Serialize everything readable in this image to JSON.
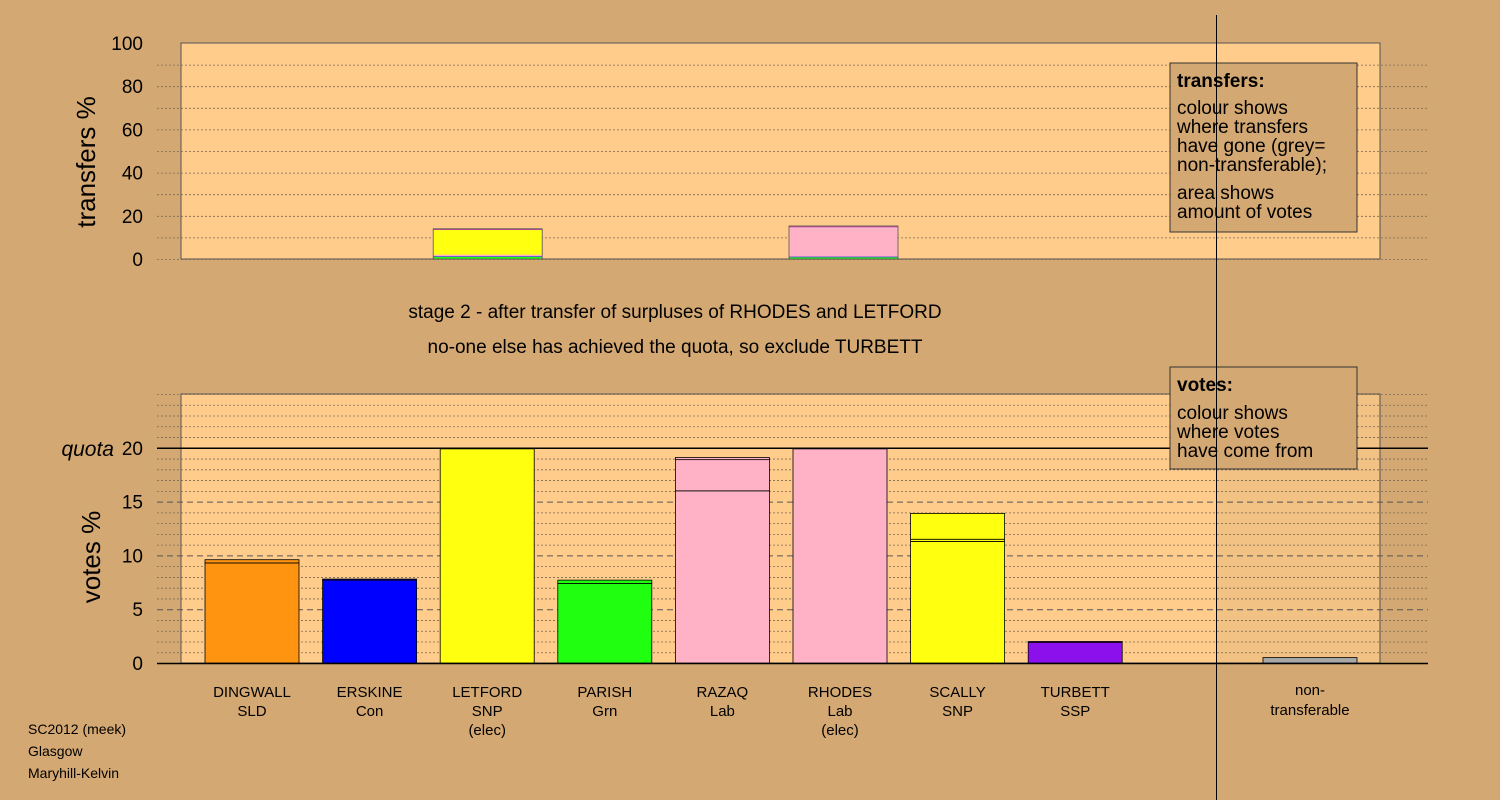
{
  "stage_text": {
    "line1": "stage 2 - after transfer of surpluses of RHODES and LETFORD",
    "line2": "no-one else has achieved the quota, so exclude TURBETT"
  },
  "legend_transfers": {
    "title": "transfers:",
    "lines": [
      "colour shows",
      "where transfers",
      "have gone (grey=",
      "non-transferable);",
      "area shows",
      "amount of votes"
    ]
  },
  "legend_votes": {
    "title": "votes:",
    "lines": [
      "colour shows",
      "where votes",
      "have come from"
    ]
  },
  "footer": [
    "SC2012 (meek)",
    "Glasgow",
    "Maryhill-Kelvin"
  ],
  "colors": {
    "background": "#d4a872",
    "panel": "#ffcc8c",
    "SLD": "#ff9410",
    "Con": "#0000ff",
    "SNP": "#ffff10",
    "Grn": "#21ff10",
    "Lab": "#ffb2c6",
    "SSP": "#8c10ec",
    "nontransferable": "#b0b0b0"
  },
  "chart_data": [
    {
      "type": "bar",
      "stacked": true,
      "ylabel": "transfers %",
      "ylim": [
        0,
        100
      ],
      "yticks": [
        0,
        20,
        40,
        60,
        80,
        100
      ],
      "grid": true,
      "bars": [
        {
          "candidate": "LETFORD",
          "total": 14,
          "segments": [
            {
              "party": "Grn",
              "value": 1.0
            },
            {
              "party": "Con",
              "value": 0.3
            },
            {
              "party": "Lab",
              "value": 0.7
            },
            {
              "party": "SNP",
              "value": 11.5
            },
            {
              "party": "SSP",
              "value": 0.2
            },
            {
              "party": "SLD",
              "value": 0.3
            }
          ]
        },
        {
          "candidate": "RHODES",
          "total": 15.3,
          "segments": [
            {
              "party": "Grn",
              "value": 0.8
            },
            {
              "party": "Con",
              "value": 0.3
            },
            {
              "party": "Lab",
              "value": 13.6
            },
            {
              "party": "SSP",
              "value": 0.3
            },
            {
              "party": "SLD",
              "value": 0.3
            }
          ]
        }
      ]
    },
    {
      "type": "bar",
      "stacked": true,
      "ylabel": "votes %",
      "ylim": [
        0,
        25
      ],
      "yticks": [
        0,
        5,
        10,
        15,
        20
      ],
      "quota": {
        "label": "quota",
        "value": 20
      },
      "grid": true,
      "categories": [
        {
          "name": "DINGWALL",
          "party": "SLD",
          "elected": false
        },
        {
          "name": "ERSKINE",
          "party": "Con",
          "elected": false
        },
        {
          "name": "LETFORD",
          "party": "SNP",
          "elected": true,
          "status": "(elec)"
        },
        {
          "name": "PARISH",
          "party": "Grn",
          "elected": false
        },
        {
          "name": "RAZAQ",
          "party": "Lab",
          "elected": false
        },
        {
          "name": "RHODES",
          "party": "Lab",
          "elected": true,
          "status": "(elec)"
        },
        {
          "name": "SCALLY",
          "party": "SNP",
          "elected": false
        },
        {
          "name": "TURBETT",
          "party": "SSP",
          "elected": false
        }
      ],
      "bars": [
        {
          "candidate": "DINGWALL",
          "segments": [
            {
              "color": "SLD",
              "value": 9.3
            },
            {
              "color": "SLD",
              "value": 0.3
            }
          ]
        },
        {
          "candidate": "ERSKINE",
          "segments": [
            {
              "color": "Con",
              "value": 7.7
            },
            {
              "color": "Con",
              "value": 0.1
            }
          ]
        },
        {
          "candidate": "LETFORD",
          "segments": [
            {
              "color": "SNP",
              "value": 19.9
            }
          ]
        },
        {
          "candidate": "PARISH",
          "segments": [
            {
              "color": "Grn",
              "value": 7.4
            },
            {
              "color": "Grn",
              "value": 0.3
            }
          ]
        },
        {
          "candidate": "RAZAQ",
          "segments": [
            {
              "color": "Lab",
              "value": 16.0
            },
            {
              "color": "Lab",
              "value": 2.9
            },
            {
              "color": "Lab",
              "value": 0.2
            }
          ]
        },
        {
          "candidate": "RHODES",
          "segments": [
            {
              "color": "Lab",
              "value": 19.9
            }
          ]
        },
        {
          "candidate": "SCALLY",
          "segments": [
            {
              "color": "SNP",
              "value": 11.3
            },
            {
              "color": "SNP",
              "value": 0.2
            },
            {
              "color": "SNP",
              "value": 2.4
            }
          ]
        },
        {
          "candidate": "TURBETT",
          "segments": [
            {
              "color": "SSP",
              "value": 1.9
            },
            {
              "color": "SSP",
              "value": 0.1
            }
          ]
        }
      ],
      "nontransferable": {
        "label_lines": [
          "non-",
          "transferable"
        ],
        "value": 0.5
      }
    }
  ]
}
